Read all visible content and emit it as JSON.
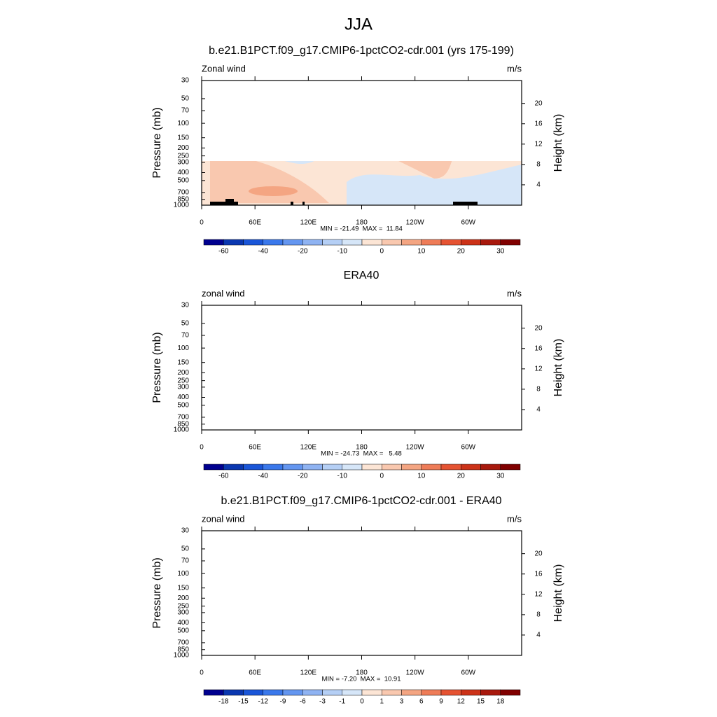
{
  "chart_data": {
    "type": "contour",
    "title": "JJA",
    "axes": {
      "xlim": [
        0,
        360
      ],
      "xticks": [
        0,
        {
          "value": 60,
          "label": "60E"
        },
        {
          "value": 120,
          "label": "120E"
        },
        180,
        {
          "value": 240,
          "label": "120W"
        },
        {
          "value": 300,
          "label": "60W"
        }
      ],
      "ylabel": "Pressure (mb)",
      "ylim": [
        1000,
        30
      ],
      "log_y": true,
      "yticks": [
        30,
        50,
        70,
        100,
        150,
        200,
        250,
        300,
        400,
        500,
        700,
        850,
        1000
      ],
      "y2label": "Height (km)",
      "y2lim": [
        0,
        24.5
      ],
      "y2ticks": [
        4,
        8,
        12,
        16,
        20
      ]
    },
    "colorbar_colors": [
      "#00008f",
      "#0a37b0",
      "#1a56d8",
      "#3a78eb",
      "#6496f0",
      "#8fb3f2",
      "#b5cff5",
      "#d6e6f8",
      "#fce5d5",
      "#f9c8af",
      "#f4a582",
      "#ee7c58",
      "#e55332",
      "#cc3218",
      "#a8190d",
      "#800000"
    ],
    "panels": [
      {
        "title": "b.e21.B1PCT.f09_g17.CMIP6-1pctCO2-cdr.001 (yrs 175-199)",
        "left_label": "Zonal wind",
        "right_label": "m/s",
        "stats": "MIN = -21.49  MAX =  11.84",
        "colorbar_labels": [
          -60,
          null,
          -40,
          null,
          -20,
          null,
          -10,
          null,
          0,
          null,
          10,
          null,
          20,
          null,
          30
        ]
      },
      {
        "title": "ERA40",
        "left_label": "zonal wind",
        "right_label": "m/s",
        "stats": "MIN = -24.73  MAX =   5.48",
        "colorbar_labels": [
          -60,
          null,
          -40,
          null,
          -20,
          null,
          -10,
          null,
          0,
          null,
          10,
          null,
          20,
          null,
          30
        ]
      },
      {
        "title": "b.e21.B1PCT.f09_g17.CMIP6-1pctCO2-cdr.001 - ERA40",
        "left_label": "zonal wind",
        "right_label": "m/s",
        "stats": "MIN = -7.20  MAX =  10.91",
        "colorbar_labels": [
          -18,
          -15,
          -12,
          -9,
          -6,
          -3,
          -1,
          0,
          1,
          3,
          6,
          9,
          12,
          15,
          18
        ]
      }
    ]
  }
}
